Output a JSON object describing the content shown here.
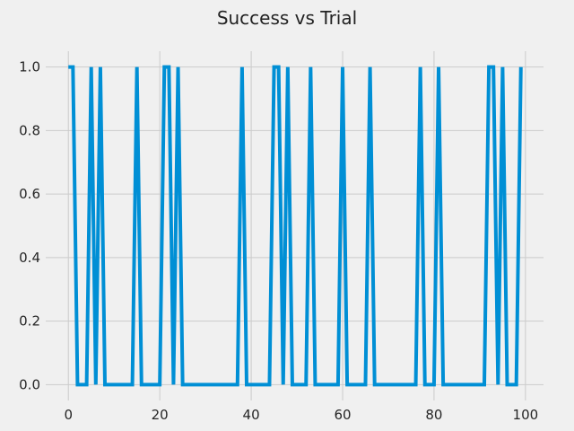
{
  "chart_data": {
    "type": "line",
    "title": "Success vs Trial",
    "xlabel": "",
    "ylabel": "",
    "xlim": [
      -4.95,
      103.95
    ],
    "ylim": [
      -0.05,
      1.05
    ],
    "xticks": [
      0,
      20,
      40,
      60,
      80,
      100
    ],
    "yticks": [
      0.0,
      0.2,
      0.4,
      0.6,
      0.8,
      1.0
    ],
    "xtick_labels": [
      "0",
      "20",
      "40",
      "60",
      "80",
      "100"
    ],
    "ytick_labels": [
      "0.0",
      "0.2",
      "0.4",
      "0.6",
      "0.8",
      "1.0"
    ],
    "grid": true,
    "series": [
      {
        "color": "#008fd5",
        "x": [
          0,
          1,
          2,
          3,
          4,
          5,
          6,
          7,
          8,
          9,
          10,
          11,
          12,
          13,
          14,
          15,
          16,
          17,
          18,
          19,
          20,
          21,
          22,
          23,
          24,
          25,
          26,
          27,
          28,
          29,
          30,
          31,
          32,
          33,
          34,
          35,
          36,
          37,
          38,
          39,
          40,
          41,
          42,
          43,
          44,
          45,
          46,
          47,
          48,
          49,
          50,
          51,
          52,
          53,
          54,
          55,
          56,
          57,
          58,
          59,
          60,
          61,
          62,
          63,
          64,
          65,
          66,
          67,
          68,
          69,
          70,
          71,
          72,
          73,
          74,
          75,
          76,
          77,
          78,
          79,
          80,
          81,
          82,
          83,
          84,
          85,
          86,
          87,
          88,
          89,
          90,
          91,
          92,
          93,
          94,
          95,
          96,
          97,
          98,
          99
        ],
        "y": [
          1,
          1,
          0,
          0,
          0,
          1,
          0,
          1,
          0,
          0,
          0,
          0,
          0,
          0,
          0,
          1,
          0,
          0,
          0,
          0,
          0,
          1,
          1,
          0,
          1,
          0,
          0,
          0,
          0,
          0,
          0,
          0,
          0,
          0,
          0,
          0,
          0,
          0,
          1,
          0,
          0,
          0,
          0,
          0,
          0,
          1,
          1,
          0,
          1,
          0,
          0,
          0,
          0,
          1,
          0,
          0,
          0,
          0,
          0,
          0,
          1,
          0,
          0,
          0,
          0,
          0,
          1,
          0,
          0,
          0,
          0,
          0,
          0,
          0,
          0,
          0,
          0,
          1,
          0,
          0,
          0,
          1,
          0,
          0,
          0,
          0,
          0,
          0,
          0,
          0,
          0,
          0,
          1,
          1,
          0,
          1,
          0,
          0,
          0,
          1
        ]
      }
    ]
  }
}
